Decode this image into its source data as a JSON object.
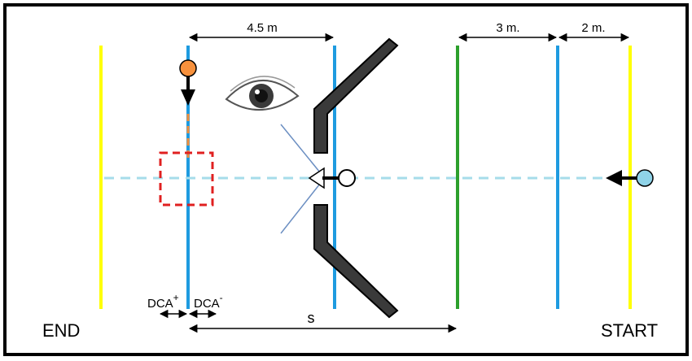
{
  "labels": {
    "end": "END",
    "start": "START",
    "distance_4_5": "4.5 m",
    "distance_3": "3 m.",
    "distance_2": "2 m.",
    "s": "s",
    "dca_plus_base": "DCA",
    "dca_plus_sup": "+",
    "dca_minus_base": "DCA",
    "dca_minus_sup": "-"
  },
  "colors": {
    "frame": "#000000",
    "yellow_line": "#ffff00",
    "blue_line": "#1e9be0",
    "green_line": "#2ca02c",
    "path_dashed": "#a6dcea",
    "approach_dashed": "#f7913d",
    "orange_ball": "#f7913d",
    "light_blue_ball": "#8fd3e8",
    "red_box": "#e02020",
    "barrier_fill": "#3a3a3a",
    "barrier_outline": "#000000",
    "sight_line": "#6c8fc2"
  }
}
